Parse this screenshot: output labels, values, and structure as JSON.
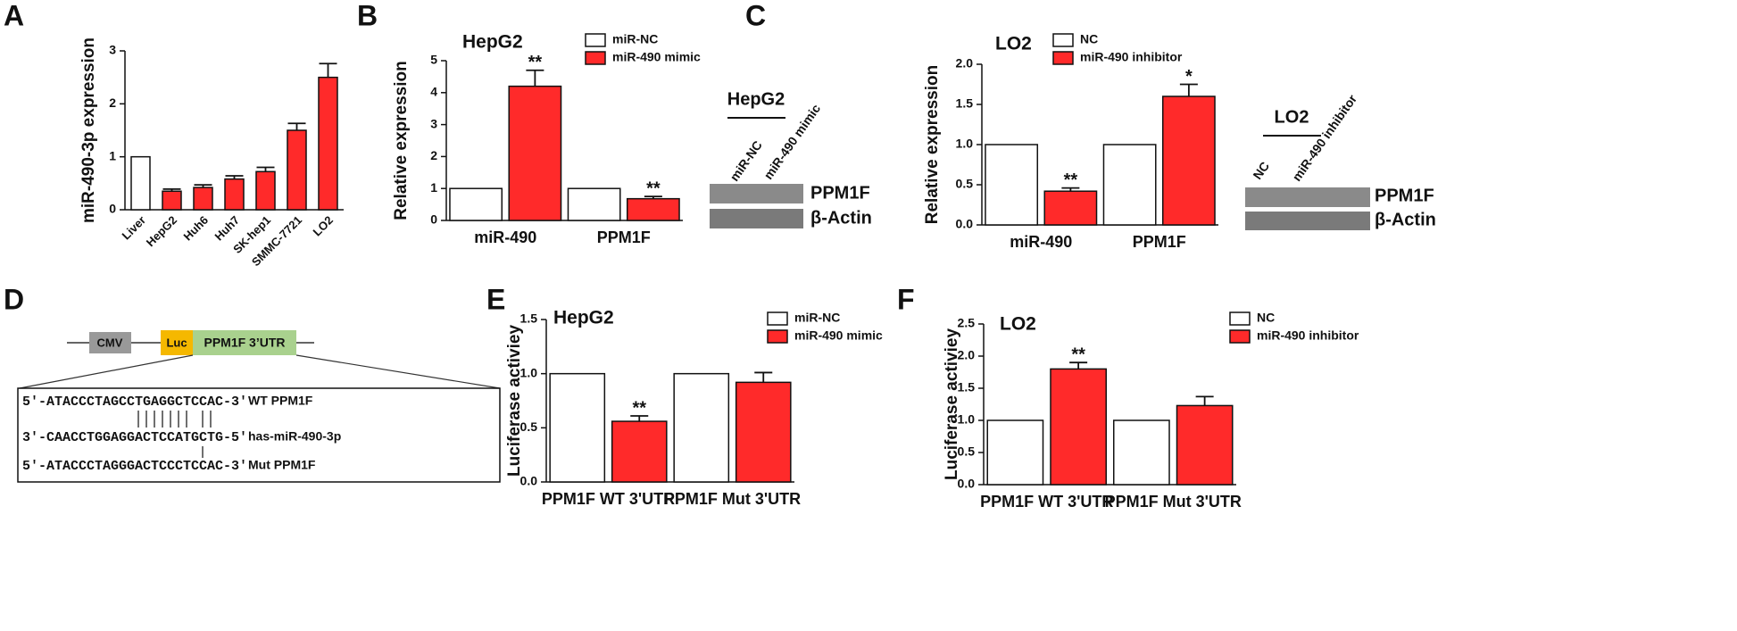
{
  "panel_labels": [
    "A",
    "B",
    "C",
    "D",
    "E",
    "F"
  ],
  "chart_data": [
    {
      "type": "bar",
      "y_label": "miR-490-3p expression",
      "categories": [
        "Liver",
        "HepG2",
        "Huh6",
        "Huh7",
        "SK-hep1",
        "SMMC-7721",
        "LO2"
      ],
      "values": [
        1,
        0.35,
        0.42,
        0.58,
        0.72,
        1.5,
        2.5
      ],
      "errors": [
        null,
        0.04,
        0.05,
        0.06,
        0.08,
        0.13,
        0.26
      ],
      "colors": [
        "#ffffff",
        "#ff2a2a",
        "#ff2a2a",
        "#ff2a2a",
        "#ff2a2a",
        "#ff2a2a",
        "#ff2a2a"
      ],
      "ylim": [
        0,
        3
      ],
      "yticks": [
        0,
        1,
        2,
        3
      ]
    },
    {
      "type": "bar",
      "title": "HepG2",
      "y_label": "Relative expression",
      "categories": [
        "miR-490",
        "PPM1F"
      ],
      "series": [
        {
          "name": "miR-NC",
          "color": "#ffffff",
          "values": [
            1,
            1
          ]
        },
        {
          "name": "miR-490 mimic",
          "color": "#ff2a2a",
          "values": [
            4.2,
            0.68
          ],
          "errors": [
            0.5,
            0.07
          ],
          "significance": [
            "**",
            "**"
          ]
        }
      ],
      "ylim": [
        0,
        5
      ],
      "yticks": [
        0,
        1,
        2,
        3,
        4,
        5
      ]
    },
    {
      "type": "bar",
      "title": "LO2",
      "y_label": "Relative expression",
      "categories": [
        "miR-490",
        "PPM1F"
      ],
      "series": [
        {
          "name": "NC",
          "color": "#ffffff",
          "values": [
            1,
            1
          ]
        },
        {
          "name": "miR-490 inhibitor",
          "color": "#ff2a2a",
          "values": [
            0.42,
            1.6
          ],
          "errors": [
            0.04,
            0.15
          ],
          "significance": [
            "**",
            "*"
          ]
        }
      ],
      "ylim": [
        0,
        2
      ],
      "yticks": [
        {
          "value": 0,
          "label": "0.0"
        },
        0.5,
        {
          "value": 1,
          "label": "1.0"
        },
        1.5,
        {
          "value": 2,
          "label": "2.0"
        }
      ]
    },
    {
      "type": "bar",
      "title": "HepG2",
      "y_label": "Luciferase activiey",
      "categories": [
        "PPM1F WT 3'UTR",
        "PPM1F Mut 3'UTR"
      ],
      "series": [
        {
          "name": "miR-NC",
          "color": "#ffffff",
          "values": [
            1,
            1
          ]
        },
        {
          "name": "miR-490 mimic",
          "color": "#ff2a2a",
          "values": [
            0.56,
            0.92
          ],
          "errors": [
            0.05,
            0.09
          ],
          "significance": [
            "**",
            null
          ]
        }
      ],
      "ylim": [
        0,
        1.5
      ],
      "yticks": [
        {
          "value": 0,
          "label": "0.0"
        },
        0.5,
        {
          "value": 1,
          "label": "1.0"
        },
        1.5
      ]
    },
    {
      "type": "bar",
      "title": "LO2",
      "y_label": "Luciferase activiey",
      "categories": [
        "PPM1F WT 3'UTR",
        "PPM1F Mut 3'UTR"
      ],
      "series": [
        {
          "name": "NC",
          "color": "#ffffff",
          "values": [
            1,
            1
          ]
        },
        {
          "name": "miR-490 inhibitor",
          "color": "#ff2a2a",
          "values": [
            1.8,
            1.23
          ],
          "errors": [
            0.1,
            0.14
          ],
          "significance": [
            "**",
            null
          ]
        }
      ],
      "ylim": [
        0,
        2.5
      ],
      "yticks": [
        {
          "value": 0,
          "label": "0.0"
        },
        0.5,
        {
          "value": 1,
          "label": "1.0"
        },
        1.5,
        {
          "value": 2,
          "label": "2.0"
        },
        2.5
      ]
    }
  ],
  "blots": [
    {
      "title": "HepG2",
      "lanes": [
        "miR-NC",
        "miR-490 mimic"
      ],
      "bands": [
        "PPM1F",
        "β-Actin"
      ]
    },
    {
      "title": "LO2",
      "lanes": [
        "NC",
        "miR-490 inhibitor"
      ],
      "bands": [
        "PPM1F",
        "β-Actin"
      ]
    }
  ],
  "construct": {
    "elements": [
      "CMV",
      "Luc",
      "PPM1F 3’UTR"
    ],
    "rows": [
      {
        "sequence": "5'-ATACCCTAGCCTGAGGCTCCAC-3'",
        "label": "WT PPM1F"
      },
      {
        "sequence": "3'-CAACCTGGAGGACTCCATGCTG-5'",
        "label": "has-miR-490-3p"
      },
      {
        "sequence": "5'-ATACCCTAGGGACTCCCTCCAC-3'",
        "label": "Mut PPM1F"
      }
    ]
  }
}
